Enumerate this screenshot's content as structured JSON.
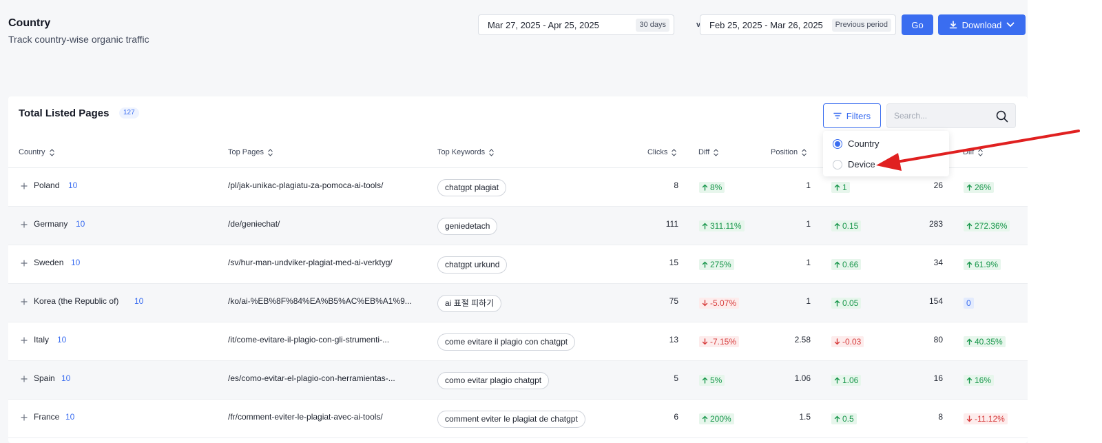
{
  "header": {
    "title": "Country",
    "subtitle": "Track country-wise organic traffic"
  },
  "date_range": {
    "current": "Mar 27, 2025 - Apr 25, 2025",
    "current_tag": "30 days",
    "vs": "vs",
    "previous": "Feb 25, 2025 - Mar 26, 2025",
    "previous_tag": "Previous period"
  },
  "actions": {
    "go_label": "Go",
    "download_label": "Download"
  },
  "table": {
    "title": "Total Listed Pages",
    "count": "127",
    "filters_label": "Filters",
    "search_placeholder": "Search...",
    "columns": [
      "Country",
      "Top Pages",
      "Top Keywords",
      "Clicks",
      "Diff",
      "Position",
      "Diff"
    ],
    "rows": [
      {
        "country": "Poland",
        "count": "10",
        "page": "/pl/jak-unikac-plagiatu-za-pomoca-ai-tools/",
        "keyword": "chatgpt plagiat",
        "clicks": "8",
        "clicks_diff": "8%",
        "clicks_dir": "up",
        "position": "1",
        "pos_diff": "1",
        "pos_dir": "up",
        "imp": "26",
        "imp_diff": "26%",
        "imp_dir": "up"
      },
      {
        "country": "Germany",
        "count": "10",
        "page": "/de/geniechat/",
        "keyword": "geniedetach",
        "clicks": "111",
        "clicks_diff": "311.11%",
        "clicks_dir": "up",
        "position": "1",
        "pos_diff": "0.15",
        "pos_dir": "up",
        "imp": "283",
        "imp_diff": "272.36%",
        "imp_dir": "up"
      },
      {
        "country": "Sweden",
        "count": "10",
        "page": "/sv/hur-man-undviker-plagiat-med-ai-verktyg/",
        "keyword": "chatgpt urkund",
        "clicks": "15",
        "clicks_diff": "275%",
        "clicks_dir": "up",
        "position": "1",
        "pos_diff": "0.66",
        "pos_dir": "up",
        "imp": "34",
        "imp_diff": "61.9%",
        "imp_dir": "up"
      },
      {
        "country": "Korea (the Republic of)",
        "count": "10",
        "page": "/ko/ai-%EB%8F%84%EA%B5%AC%EB%A1%9...",
        "keyword": "ai 표절 피하기",
        "clicks": "75",
        "clicks_diff": "-5.07%",
        "clicks_dir": "down",
        "position": "1",
        "pos_diff": "0.05",
        "pos_dir": "up",
        "imp": "154",
        "imp_diff": "0",
        "imp_dir": "zero"
      },
      {
        "country": "Italy",
        "count": "10",
        "page": "/it/come-evitare-il-plagio-con-gli-strumenti-...",
        "keyword": "come evitare il plagio con chatgpt",
        "clicks": "13",
        "clicks_diff": "-7.15%",
        "clicks_dir": "down",
        "position": "2.58",
        "pos_diff": "-0.03",
        "pos_dir": "down",
        "imp": "80",
        "imp_diff": "40.35%",
        "imp_dir": "up"
      },
      {
        "country": "Spain",
        "count": "10",
        "page": "/es/como-evitar-el-plagio-con-herramientas-...",
        "keyword": "como evitar plagio chatgpt",
        "clicks": "5",
        "clicks_diff": "5%",
        "clicks_dir": "up",
        "position": "1.06",
        "pos_diff": "1.06",
        "pos_dir": "up",
        "imp": "16",
        "imp_diff": "16%",
        "imp_dir": "up"
      },
      {
        "country": "France",
        "count": "10",
        "page": "/fr/comment-eviter-le-plagiat-avec-ai-tools/",
        "keyword": "comment eviter le plagiat de chatgpt",
        "clicks": "6",
        "clicks_diff": "200%",
        "clicks_dir": "up",
        "position": "1.5",
        "pos_diff": "0.5",
        "pos_dir": "up",
        "imp": "8",
        "imp_diff": "-11.12%",
        "imp_dir": "down"
      }
    ]
  },
  "filter_menu": {
    "options": [
      {
        "label": "Country",
        "selected": true
      },
      {
        "label": "Device",
        "selected": false
      }
    ]
  },
  "annotation": {
    "color": "#e02020",
    "icon": "red-arrow"
  }
}
